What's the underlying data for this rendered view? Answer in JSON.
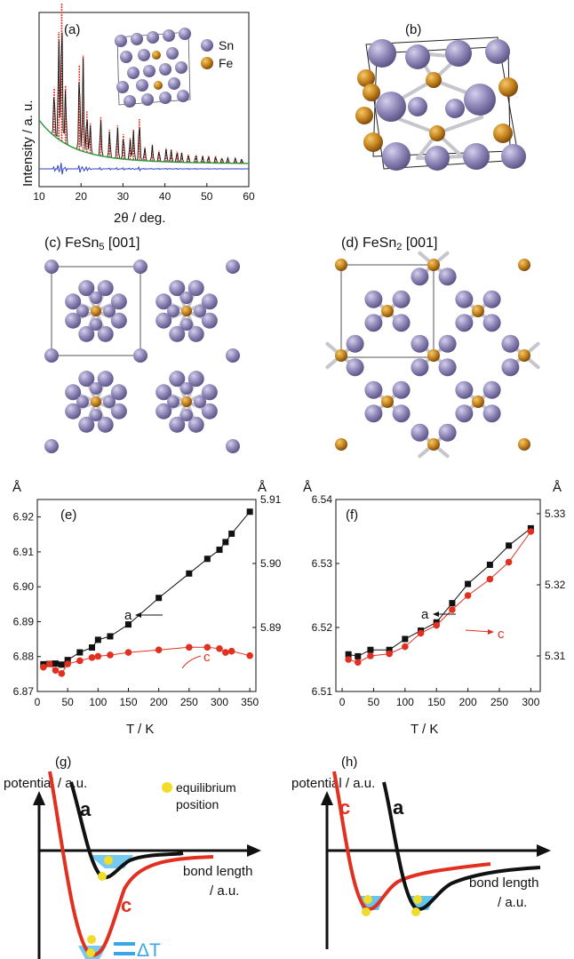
{
  "colors": {
    "sn": "#8f87b8",
    "sn_dark": "#6b6494",
    "fe": "#c8861e",
    "fe_dark": "#8a5610",
    "red": "#e23020",
    "black": "#111111",
    "blue": "#3040c8",
    "cyan": "#66c4ee",
    "yellow": "#f2dc2a",
    "bond": "#c8c8c8"
  },
  "panels": {
    "a": {
      "label": "(a)",
      "xlabel": "2θ / deg.",
      "ylabel": "Intensity / a. u.",
      "legend": [
        {
          "name": "Sn",
          "color": "sn"
        },
        {
          "name": "Fe",
          "color": "fe"
        }
      ]
    },
    "b": {
      "label": "(b)"
    },
    "c": {
      "label_prefix": "(c) FeSn",
      "label_sub": "5",
      "label_suffix": " [001]"
    },
    "d": {
      "label_prefix": "(d) FeSn",
      "label_sub": "2",
      "label_suffix": " [001]"
    },
    "e": {
      "label": "(e)",
      "unit_left": "Å",
      "unit_right": "Å",
      "xlabel": "T / K",
      "annot_a": "a",
      "annot_c": "c"
    },
    "f": {
      "label": "(f)",
      "unit_left": "Å",
      "unit_right": "Å",
      "xlabel": "T / K",
      "annot_a": "a",
      "annot_c": "c"
    },
    "g": {
      "label": "(g)",
      "ylabel": "potential / a.u.",
      "xlabel_1": "bond length",
      "xlabel_2": "/ a.u.",
      "curve_a": "a",
      "curve_c": "c",
      "legend_1": "equilibrium",
      "legend_2": "position",
      "delta": "ΔT"
    },
    "h": {
      "label": "(h)",
      "ylabel": "potential / a.u.",
      "xlabel_1": "bond length",
      "xlabel_2": "/ a.u.",
      "curve_a": "a",
      "curve_c": "c"
    }
  },
  "chart_data": [
    {
      "type": "line",
      "title": "",
      "xlabel": "2θ / deg.",
      "ylabel": "Intensity / a. u.",
      "xlim": [
        10,
        60
      ],
      "xticks": [
        10,
        20,
        30,
        40,
        50,
        60
      ],
      "grid": false,
      "series": [],
      "peaks_x": [
        13.6,
        14.7,
        15.4,
        16.3,
        19.6,
        20.5,
        21.4,
        22.2,
        24.7,
        26.8,
        28.7,
        30.1,
        31.7,
        32.5,
        33.9,
        35.2,
        37.0,
        38.6,
        40.3,
        41.5,
        42.9,
        44.0,
        45.6,
        47.4,
        49.0,
        50.4,
        52.1,
        53.6,
        55.0,
        56.8,
        58.3
      ],
      "peaks_rel_intensity": [
        0.35,
        0.78,
        1.0,
        0.42,
        0.62,
        0.7,
        0.3,
        0.22,
        0.28,
        0.2,
        0.24,
        0.18,
        0.16,
        0.22,
        0.3,
        0.1,
        0.12,
        0.08,
        0.1,
        0.09,
        0.08,
        0.07,
        0.06,
        0.06,
        0.05,
        0.05,
        0.05,
        0.04,
        0.04,
        0.04,
        0.03
      ]
    },
    {
      "type": "line",
      "title": "",
      "xlabel": "T / K",
      "xlim": [
        0,
        360
      ],
      "xticks": [
        0,
        50,
        100,
        150,
        200,
        250,
        300,
        350
      ],
      "ylim_left": [
        6.87,
        6.925
      ],
      "yticks_left": [
        6.87,
        6.88,
        6.89,
        6.9,
        6.91,
        6.92
      ],
      "ylim_right": [
        5.88,
        5.91
      ],
      "yticks_right": [
        5.89,
        5.9,
        5.91
      ],
      "series": [
        {
          "name": "a",
          "axis": "left",
          "color": "black",
          "marker": "square",
          "x": [
            10,
            20,
            30,
            40,
            50,
            70,
            90,
            100,
            120,
            150,
            200,
            250,
            280,
            300,
            310,
            320,
            350
          ],
          "y": [
            6.8778,
            6.8779,
            6.878,
            6.8777,
            6.879,
            6.8812,
            6.8826,
            6.8848,
            6.8858,
            6.8892,
            6.8968,
            6.9038,
            6.908,
            6.9106,
            6.9128,
            6.9152,
            6.9215
          ]
        },
        {
          "name": "c",
          "axis": "right",
          "color": "red",
          "marker": "circle",
          "x": [
            10,
            20,
            30,
            40,
            50,
            70,
            90,
            100,
            120,
            150,
            200,
            250,
            280,
            300,
            310,
            320,
            350
          ],
          "y": [
            5.8838,
            5.8843,
            5.8833,
            5.8828,
            5.8843,
            5.8848,
            5.8853,
            5.8855,
            5.8857,
            5.8861,
            5.8865,
            5.8869,
            5.8869,
            5.8867,
            5.8861,
            5.8863,
            5.8856
          ]
        }
      ]
    },
    {
      "type": "line",
      "title": "",
      "xlabel": "T / K",
      "xlim": [
        -10,
        315
      ],
      "xticks": [
        0,
        50,
        100,
        150,
        200,
        250,
        300
      ],
      "ylim_left": [
        6.51,
        6.54
      ],
      "yticks_left": [
        6.51,
        6.52,
        6.53,
        6.54
      ],
      "ylim_right": [
        5.305,
        5.332
      ],
      "yticks_right": [
        5.31,
        5.32,
        5.33
      ],
      "series": [
        {
          "name": "a",
          "axis": "left",
          "color": "black",
          "marker": "square",
          "x": [
            10,
            25,
            45,
            75,
            100,
            125,
            150,
            175,
            200,
            235,
            265,
            300
          ],
          "y": [
            6.5158,
            6.5155,
            6.5165,
            6.5165,
            6.5182,
            6.5195,
            6.5208,
            6.5238,
            6.5268,
            6.5298,
            6.5328,
            6.5355
          ]
        },
        {
          "name": "c",
          "axis": "right",
          "color": "red",
          "marker": "circle",
          "x": [
            10,
            25,
            45,
            75,
            100,
            125,
            150,
            175,
            200,
            235,
            265,
            300
          ],
          "y": [
            5.3095,
            5.3091,
            5.31,
            5.3103,
            5.3113,
            5.3132,
            5.3143,
            5.3165,
            5.3185,
            5.3208,
            5.3232,
            5.3275
          ]
        }
      ]
    }
  ]
}
